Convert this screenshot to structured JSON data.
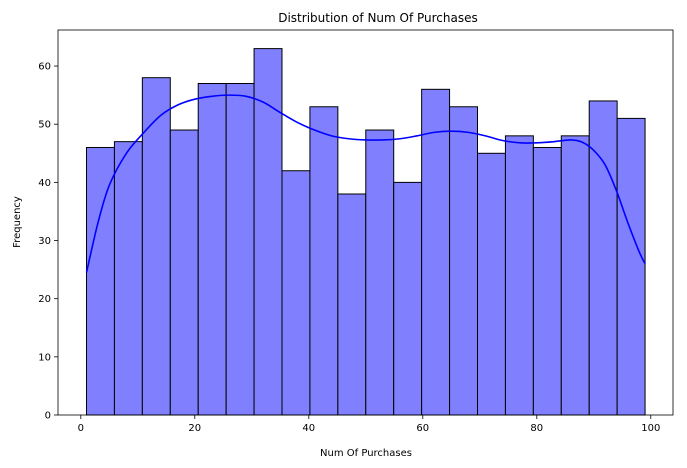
{
  "chart_data": {
    "type": "bar",
    "title": "Distribution of Num Of Purchases",
    "xlabel": "Num Of Purchases",
    "ylabel": "Frequency",
    "xlim": [
      -4.0,
      103.9
    ],
    "ylim": [
      0,
      66.2
    ],
    "xticks": [
      0,
      20,
      40,
      60,
      80,
      100
    ],
    "yticks": [
      0,
      10,
      20,
      30,
      40,
      50,
      60
    ],
    "bins": {
      "start": 1,
      "width": 4.9,
      "counts": [
        46,
        47,
        58,
        49,
        57,
        57,
        63,
        42,
        53,
        38,
        49,
        40,
        56,
        53,
        45,
        48,
        46,
        48,
        54,
        51
      ]
    },
    "kde": {
      "x": [
        1,
        3,
        5,
        8,
        11,
        14,
        17,
        20,
        23,
        26,
        29,
        32,
        35,
        38,
        41,
        44,
        47,
        50,
        53,
        56,
        59,
        62,
        65,
        68,
        71,
        74,
        77,
        80,
        83,
        86,
        88,
        90,
        92,
        94,
        96,
        98,
        99
      ],
      "y": [
        24.5,
        33.0,
        39.5,
        45.0,
        48.5,
        51.5,
        53.3,
        54.3,
        54.8,
        55.0,
        54.8,
        53.8,
        52.0,
        50.3,
        49.0,
        48.0,
        47.5,
        47.3,
        47.3,
        47.5,
        48.0,
        48.6,
        48.8,
        48.6,
        48.0,
        47.2,
        46.8,
        46.8,
        47.0,
        47.3,
        46.9,
        45.5,
        43.0,
        38.5,
        33.0,
        28.0,
        26.0
      ]
    },
    "colors": {
      "bar_fill": "#8080ff",
      "bar_edge": "#000000",
      "kde_line": "#0000ff"
    },
    "grid": false,
    "legend": "none"
  }
}
